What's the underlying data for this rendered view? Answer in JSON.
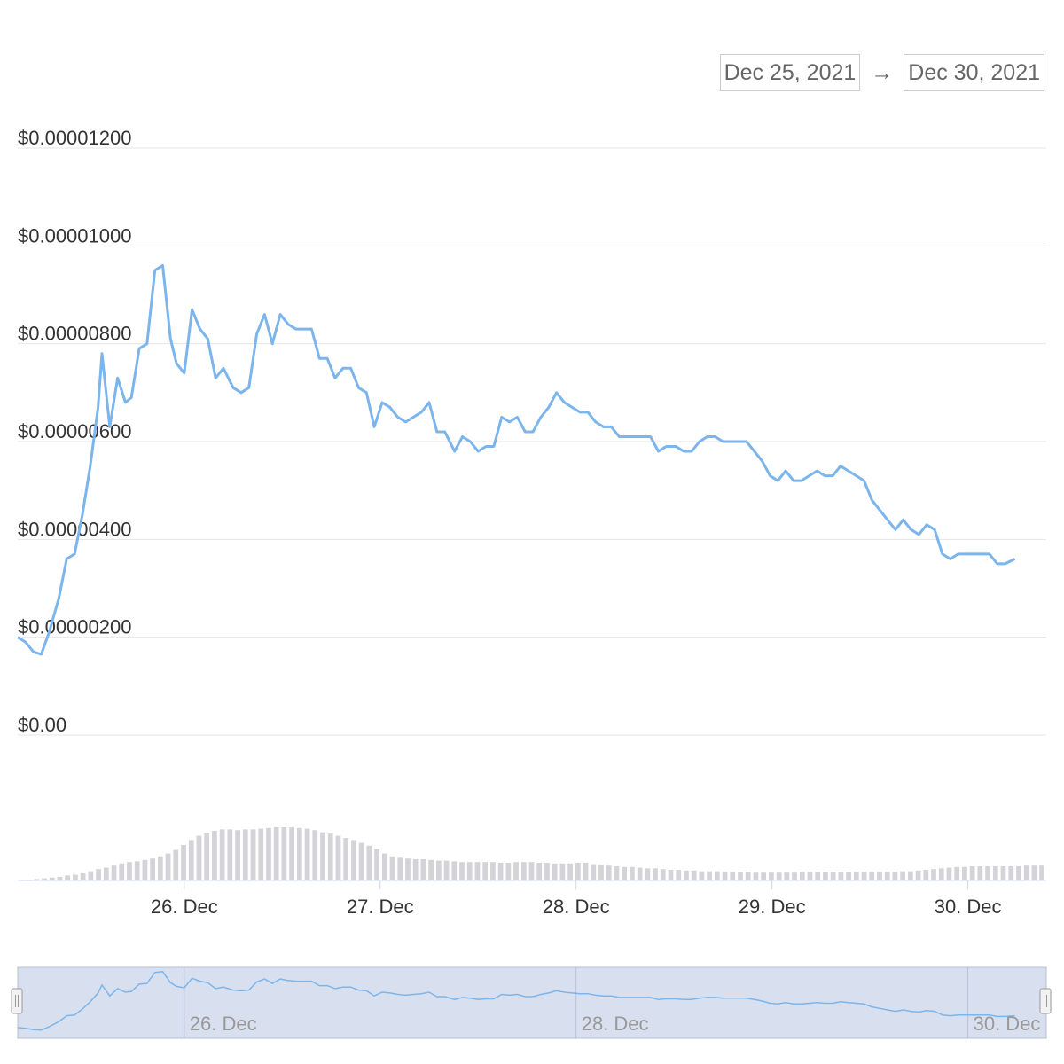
{
  "range_selector": {
    "from": "Dec 25, 2021",
    "arrow": "→",
    "to": "Dec 30, 2021"
  },
  "colors": {
    "line": "#7cb5ec",
    "volume": "#d3d3d8",
    "grid": "#e6e6e6",
    "navigator_fill": "#d8e0f0",
    "navigator_border": "#b6c0d6"
  },
  "chart_data": {
    "type": "line",
    "title": "",
    "xlabel": "",
    "ylabel": "",
    "x_range_days": [
      25.15,
      30.4
    ],
    "ylim": [
      0,
      1.2e-05
    ],
    "y_ticks": [
      {
        "value": 0,
        "label": "$0.00"
      },
      {
        "value": 2e-06,
        "label": "$0.00000200"
      },
      {
        "value": 4e-06,
        "label": "$0.00000400"
      },
      {
        "value": 6e-06,
        "label": "$0.00000600"
      },
      {
        "value": 8e-06,
        "label": "$0.00000800"
      },
      {
        "value": 1e-05,
        "label": "$0.00001000"
      },
      {
        "value": 1.2e-05,
        "label": "$0.00001200"
      }
    ],
    "x_ticks": [
      {
        "value": 26,
        "label": "26. Dec"
      },
      {
        "value": 27,
        "label": "27. Dec"
      },
      {
        "value": 28,
        "label": "28. Dec"
      },
      {
        "value": 29,
        "label": "29. Dec"
      },
      {
        "value": 30,
        "label": "30. Dec"
      }
    ],
    "navigator_ticks": [
      {
        "value": 26,
        "label": "26. Dec"
      },
      {
        "value": 28,
        "label": "28. Dec"
      },
      {
        "value": 30,
        "label": "30. Dec"
      }
    ],
    "series": [
      {
        "price": [
          [
            25.15,
            2e-06
          ],
          [
            25.19,
            1.9e-06
          ],
          [
            25.23,
            1.7e-06
          ],
          [
            25.27,
            1.65e-06
          ],
          [
            25.31,
            2.1e-06
          ],
          [
            25.36,
            2.8e-06
          ],
          [
            25.4,
            3.6e-06
          ],
          [
            25.44,
            3.7e-06
          ],
          [
            25.48,
            4.5e-06
          ],
          [
            25.52,
            5.5e-06
          ],
          [
            25.56,
            6.7e-06
          ],
          [
            25.58,
            7.8e-06
          ],
          [
            25.62,
            6.3e-06
          ],
          [
            25.66,
            7.3e-06
          ],
          [
            25.7,
            6.8e-06
          ],
          [
            25.73,
            6.9e-06
          ],
          [
            25.77,
            7.9e-06
          ],
          [
            25.81,
            8e-06
          ],
          [
            25.85,
            9.5e-06
          ],
          [
            25.89,
            9.6e-06
          ],
          [
            25.93,
            8.1e-06
          ],
          [
            25.96,
            7.6e-06
          ],
          [
            26.0,
            7.4e-06
          ],
          [
            26.04,
            8.7e-06
          ],
          [
            26.08,
            8.3e-06
          ],
          [
            26.12,
            8.1e-06
          ],
          [
            26.16,
            7.3e-06
          ],
          [
            26.2,
            7.5e-06
          ],
          [
            26.25,
            7.1e-06
          ],
          [
            26.29,
            7e-06
          ],
          [
            26.33,
            7.1e-06
          ],
          [
            26.37,
            8.2e-06
          ],
          [
            26.41,
            8.6e-06
          ],
          [
            26.45,
            8e-06
          ],
          [
            26.49,
            8.6e-06
          ],
          [
            26.53,
            8.4e-06
          ],
          [
            26.57,
            8.3e-06
          ],
          [
            26.61,
            8.3e-06
          ],
          [
            26.65,
            8.3e-06
          ],
          [
            26.69,
            7.7e-06
          ],
          [
            26.73,
            7.7e-06
          ],
          [
            26.77,
            7.3e-06
          ],
          [
            26.81,
            7.5e-06
          ],
          [
            26.85,
            7.5e-06
          ],
          [
            26.89,
            7.1e-06
          ],
          [
            26.93,
            7e-06
          ],
          [
            26.97,
            6.3e-06
          ],
          [
            27.01,
            6.8e-06
          ],
          [
            27.05,
            6.7e-06
          ],
          [
            27.09,
            6.5e-06
          ],
          [
            27.13,
            6.4e-06
          ],
          [
            27.17,
            6.5e-06
          ],
          [
            27.21,
            6.6e-06
          ],
          [
            27.25,
            6.8e-06
          ],
          [
            27.29,
            6.2e-06
          ],
          [
            27.33,
            6.2e-06
          ],
          [
            27.38,
            5.8e-06
          ],
          [
            27.42,
            6.1e-06
          ],
          [
            27.46,
            6e-06
          ],
          [
            27.5,
            5.8e-06
          ],
          [
            27.54,
            5.9e-06
          ],
          [
            27.58,
            5.9e-06
          ],
          [
            27.62,
            6.5e-06
          ],
          [
            27.66,
            6.4e-06
          ],
          [
            27.7,
            6.5e-06
          ],
          [
            27.74,
            6.2e-06
          ],
          [
            27.78,
            6.2e-06
          ],
          [
            27.82,
            6.5e-06
          ],
          [
            27.86,
            6.7e-06
          ],
          [
            27.9,
            7e-06
          ],
          [
            27.94,
            6.8e-06
          ],
          [
            27.98,
            6.7e-06
          ],
          [
            28.02,
            6.6e-06
          ],
          [
            28.06,
            6.6e-06
          ],
          [
            28.1,
            6.4e-06
          ],
          [
            28.14,
            6.3e-06
          ],
          [
            28.18,
            6.3e-06
          ],
          [
            28.22,
            6.1e-06
          ],
          [
            28.26,
            6.1e-06
          ],
          [
            28.3,
            6.1e-06
          ],
          [
            28.34,
            6.1e-06
          ],
          [
            28.38,
            6.1e-06
          ],
          [
            28.42,
            5.8e-06
          ],
          [
            28.46,
            5.9e-06
          ],
          [
            28.51,
            5.9e-06
          ],
          [
            28.55,
            5.8e-06
          ],
          [
            28.59,
            5.8e-06
          ],
          [
            28.63,
            6e-06
          ],
          [
            28.67,
            6.1e-06
          ],
          [
            28.71,
            6.1e-06
          ],
          [
            28.75,
            6e-06
          ],
          [
            28.79,
            6e-06
          ],
          [
            28.83,
            6e-06
          ],
          [
            28.87,
            6e-06
          ],
          [
            28.91,
            5.8e-06
          ],
          [
            28.95,
            5.6e-06
          ],
          [
            28.99,
            5.3e-06
          ],
          [
            29.03,
            5.2e-06
          ],
          [
            29.07,
            5.4e-06
          ],
          [
            29.11,
            5.2e-06
          ],
          [
            29.15,
            5.2e-06
          ],
          [
            29.19,
            5.3e-06
          ],
          [
            29.23,
            5.4e-06
          ],
          [
            29.27,
            5.3e-06
          ],
          [
            29.31,
            5.3e-06
          ],
          [
            29.35,
            5.5e-06
          ],
          [
            29.39,
            5.4e-06
          ],
          [
            29.43,
            5.3e-06
          ],
          [
            29.47,
            5.2e-06
          ],
          [
            29.51,
            4.8e-06
          ],
          [
            29.55,
            4.6e-06
          ],
          [
            29.59,
            4.4e-06
          ],
          [
            29.63,
            4.2e-06
          ],
          [
            29.67,
            4.4e-06
          ],
          [
            29.71,
            4.2e-06
          ],
          [
            29.75,
            4.1e-06
          ],
          [
            29.79,
            4.3e-06
          ],
          [
            29.83,
            4.2e-06
          ],
          [
            29.87,
            3.7e-06
          ],
          [
            29.91,
            3.6e-06
          ],
          [
            29.95,
            3.7e-06
          ],
          [
            29.99,
            3.7e-06
          ],
          [
            30.03,
            3.7e-06
          ],
          [
            30.07,
            3.7e-06
          ],
          [
            30.11,
            3.7e-06
          ],
          [
            30.15,
            3.5e-06
          ],
          [
            30.19,
            3.5e-06
          ],
          [
            30.24,
            3.6e-06
          ]
        ],
        "volume_relative": [
          0.01,
          0.01,
          0.02,
          0.03,
          0.04,
          0.05,
          0.07,
          0.08,
          0.1,
          0.13,
          0.16,
          0.18,
          0.21,
          0.24,
          0.26,
          0.27,
          0.29,
          0.31,
          0.34,
          0.38,
          0.43,
          0.5,
          0.57,
          0.63,
          0.67,
          0.7,
          0.72,
          0.72,
          0.71,
          0.72,
          0.72,
          0.73,
          0.74,
          0.75,
          0.75,
          0.75,
          0.74,
          0.73,
          0.71,
          0.68,
          0.66,
          0.63,
          0.6,
          0.57,
          0.53,
          0.49,
          0.44,
          0.38,
          0.34,
          0.32,
          0.31,
          0.3,
          0.3,
          0.29,
          0.28,
          0.28,
          0.27,
          0.26,
          0.26,
          0.26,
          0.26,
          0.26,
          0.25,
          0.25,
          0.26,
          0.26,
          0.26,
          0.25,
          0.25,
          0.24,
          0.24,
          0.24,
          0.25,
          0.25,
          0.23,
          0.22,
          0.21,
          0.2,
          0.19,
          0.19,
          0.18,
          0.17,
          0.17,
          0.16,
          0.15,
          0.15,
          0.14,
          0.14,
          0.13,
          0.13,
          0.13,
          0.12,
          0.12,
          0.12,
          0.12,
          0.11,
          0.11,
          0.11,
          0.11,
          0.11,
          0.11,
          0.12,
          0.12,
          0.12,
          0.12,
          0.12,
          0.12,
          0.12,
          0.12,
          0.12,
          0.12,
          0.12,
          0.12,
          0.12,
          0.13,
          0.13,
          0.14,
          0.15,
          0.16,
          0.17,
          0.18,
          0.19,
          0.19,
          0.2,
          0.2,
          0.2,
          0.2,
          0.2,
          0.2,
          0.2,
          0.21,
          0.21,
          0.21
        ]
      }
    ]
  }
}
